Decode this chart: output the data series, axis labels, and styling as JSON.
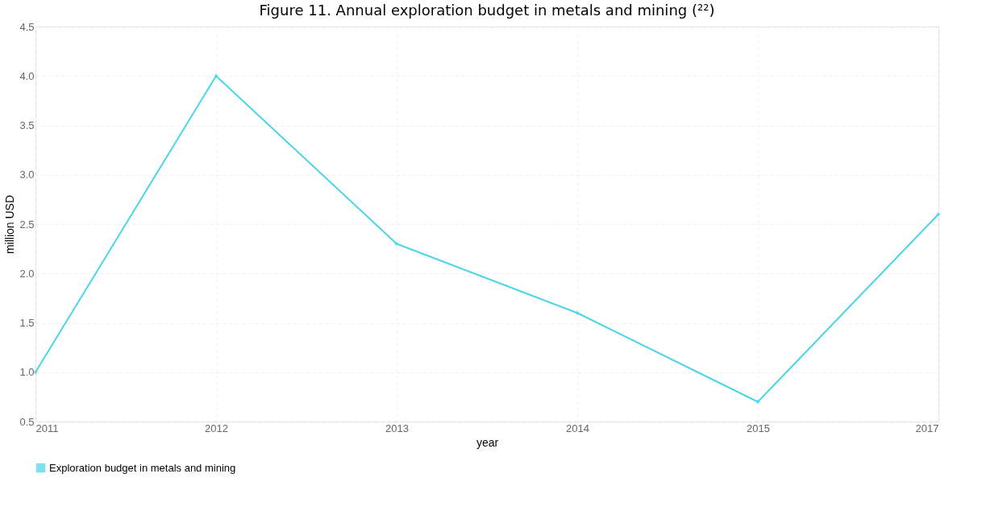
{
  "chart_data": {
    "type": "line",
    "title": "Figure 11. Annual exploration budget in metals and mining (²²)",
    "xlabel": "year",
    "ylabel": "million USD",
    "categories": [
      "2011",
      "2012",
      "2013",
      "2014",
      "2015",
      "2017"
    ],
    "series": [
      {
        "name": "Exploration budget in metals and mining",
        "color": "#4dd4e8",
        "values": [
          1.0,
          4.0,
          2.3,
          1.6,
          0.7,
          2.6
        ]
      }
    ],
    "ylim": [
      0.5,
      4.5
    ],
    "yticks": [
      0.5,
      {
        "value": 1,
        "label": "1.0"
      },
      1.5,
      {
        "value": 2,
        "label": "2.0"
      },
      2.5,
      {
        "value": 3,
        "label": "3.0"
      },
      3.5,
      {
        "value": 4,
        "label": "4.0"
      },
      4.5
    ],
    "grid": true,
    "legend": "bottom",
    "marker": "diamond",
    "line_style": "solid"
  }
}
